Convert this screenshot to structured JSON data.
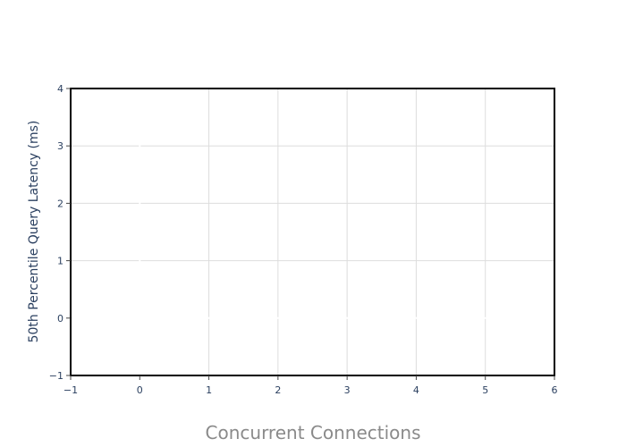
{
  "chart_data": {
    "type": "line",
    "title": "",
    "xlabel": "Concurrent Connections",
    "ylabel": "50th Percentile Query Latency (ms)",
    "xlim": [
      -1,
      6
    ],
    "ylim": [
      -1,
      4
    ],
    "x_ticks": [
      -1,
      0,
      1,
      2,
      3,
      4,
      5,
      6
    ],
    "x_tick_labels": [
      "−1",
      "0",
      "1",
      "2",
      "3",
      "4",
      "5",
      "6"
    ],
    "y_ticks": [
      -1,
      0,
      1,
      2,
      3,
      4
    ],
    "y_tick_labels": [
      "−1",
      "0",
      "1",
      "2",
      "3",
      "4"
    ],
    "grid": true,
    "series": [],
    "colors": {
      "grid": "#dddddd",
      "zero_line": "#ffffff",
      "frame": "#000000",
      "tick_text": "#2a3f5f",
      "xlabel_text": "#8a8a8a"
    }
  }
}
